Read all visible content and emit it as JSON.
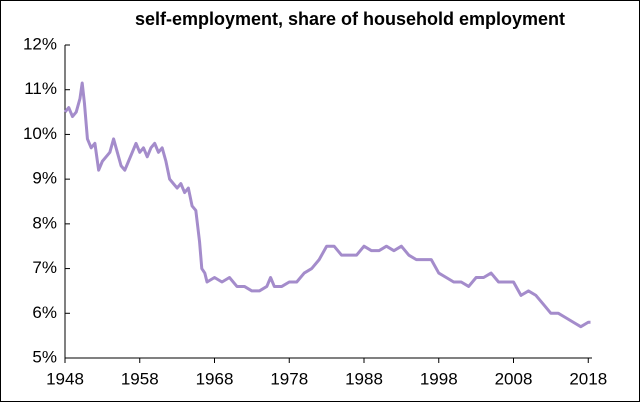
{
  "chart_data": {
    "type": "line",
    "title": "self-employment, share of household employment",
    "x": [
      1948,
      1948.5,
      1949,
      1949.5,
      1950,
      1950.3,
      1950.6,
      1951,
      1951.5,
      1952,
      1952.5,
      1953,
      1953.5,
      1954,
      1954.5,
      1955,
      1955.5,
      1956,
      1956.5,
      1957,
      1957.5,
      1958,
      1958.5,
      1959,
      1959.5,
      1960,
      1960.5,
      1961,
      1961.5,
      1962,
      1962.5,
      1963,
      1963.5,
      1964,
      1964.5,
      1965,
      1965.5,
      1966,
      1966.3,
      1966.7,
      1967,
      1968,
      1969,
      1970,
      1971,
      1972,
      1973,
      1974,
      1975,
      1975.5,
      1976,
      1977,
      1978,
      1979,
      1980,
      1981,
      1982,
      1983,
      1984,
      1985,
      1986,
      1987,
      1988,
      1989,
      1990,
      1991,
      1992,
      1993,
      1994,
      1995,
      1996,
      1997,
      1998,
      1999,
      2000,
      2001,
      2002,
      2003,
      2004,
      2005,
      2006,
      2007,
      2008,
      2009,
      2010,
      2011,
      2012,
      2013,
      2014,
      2015,
      2016,
      2017,
      2018,
      2018.3
    ],
    "series": [
      {
        "name": "self-employment share",
        "color": "#a48ccb",
        "values": [
          10.5,
          10.6,
          10.4,
          10.5,
          10.8,
          11.15,
          10.7,
          9.9,
          9.7,
          9.8,
          9.2,
          9.4,
          9.5,
          9.6,
          9.9,
          9.6,
          9.3,
          9.2,
          9.4,
          9.6,
          9.8,
          9.6,
          9.7,
          9.5,
          9.7,
          9.8,
          9.6,
          9.7,
          9.4,
          9.0,
          8.9,
          8.8,
          8.9,
          8.7,
          8.8,
          8.4,
          8.3,
          7.6,
          7.0,
          6.9,
          6.7,
          6.8,
          6.7,
          6.8,
          6.6,
          6.6,
          6.5,
          6.5,
          6.6,
          6.8,
          6.6,
          6.6,
          6.7,
          6.7,
          6.9,
          7.0,
          7.2,
          7.5,
          7.5,
          7.3,
          7.3,
          7.3,
          7.5,
          7.4,
          7.4,
          7.5,
          7.4,
          7.5,
          7.3,
          7.2,
          7.2,
          7.2,
          6.9,
          6.8,
          6.7,
          6.7,
          6.6,
          6.8,
          6.8,
          6.9,
          6.7,
          6.7,
          6.7,
          6.4,
          6.5,
          6.4,
          6.2,
          6.0,
          6.0,
          5.9,
          5.8,
          5.7,
          5.8,
          5.8
        ]
      }
    ],
    "xlim": [
      1948,
      2018.5
    ],
    "xticks": [
      1948,
      1958,
      1968,
      1978,
      1988,
      1998,
      2008,
      2018
    ],
    "ylim": [
      5,
      12
    ],
    "yticks": [
      {
        "value": 5,
        "label": "5%"
      },
      {
        "value": 6,
        "label": "6%"
      },
      {
        "value": 7,
        "label": "7%"
      },
      {
        "value": 8,
        "label": "8%"
      },
      {
        "value": 9,
        "label": "9%"
      },
      {
        "value": 10,
        "label": "10%"
      },
      {
        "value": 11,
        "label": "11%"
      },
      {
        "value": 12,
        "label": "12%"
      }
    ]
  }
}
